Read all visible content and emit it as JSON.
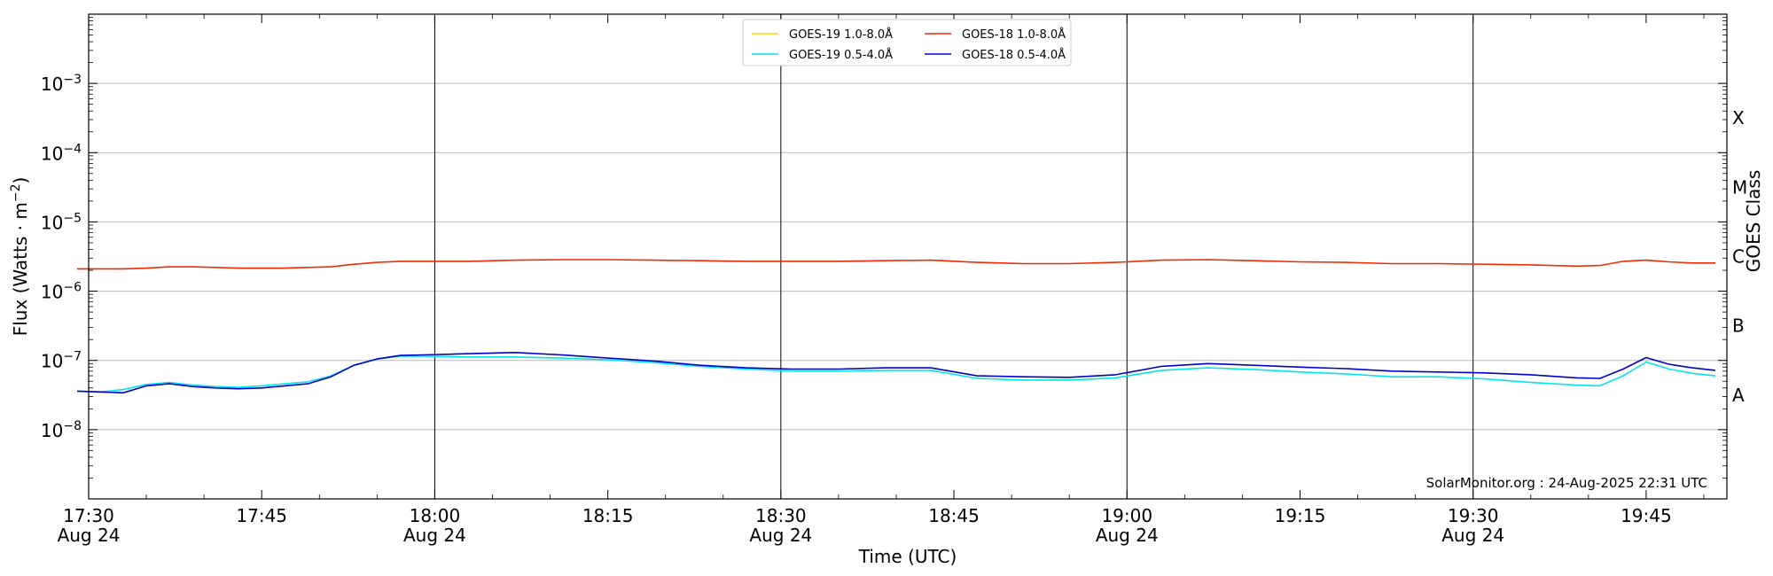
{
  "chart_data": {
    "type": "line",
    "title": "",
    "xlabel": "Time (UTC)",
    "ylabel": "Flux (Watts · m⁻²)",
    "ylabel_parts": {
      "main": "Flux (Watts · m",
      "sup": "−2",
      "close": ")"
    },
    "right_axis_label": "GOES Class",
    "y_scale": "log",
    "ylim": [
      1e-09,
      0.01
    ],
    "xlim": [
      "2025-08-24 17:30",
      "2025-08-24 19:52"
    ],
    "grid": {
      "horizontal": true,
      "vertical_lines_at_half_hour": true
    },
    "y_ticks": [
      {
        "value": 1e-08,
        "base": "10",
        "exp": "−8"
      },
      {
        "value": 1e-07,
        "base": "10",
        "exp": "−7"
      },
      {
        "value": 1e-06,
        "base": "10",
        "exp": "−6"
      },
      {
        "value": 1e-05,
        "base": "10",
        "exp": "−5"
      },
      {
        "value": 0.0001,
        "base": "10",
        "exp": "−4"
      },
      {
        "value": 0.001,
        "base": "10",
        "exp": "−3"
      }
    ],
    "x_ticks": [
      {
        "time": "17:30",
        "line1": "17:30",
        "line2": "Aug 24"
      },
      {
        "time": "17:45",
        "line1": "17:45",
        "line2": ""
      },
      {
        "time": "18:00",
        "line1": "18:00",
        "line2": "Aug 24"
      },
      {
        "time": "18:15",
        "line1": "18:15",
        "line2": ""
      },
      {
        "time": "18:30",
        "line1": "18:30",
        "line2": "Aug 24"
      },
      {
        "time": "18:45",
        "line1": "18:45",
        "line2": ""
      },
      {
        "time": "19:00",
        "line1": "19:00",
        "line2": "Aug 24"
      },
      {
        "time": "19:15",
        "line1": "19:15",
        "line2": ""
      },
      {
        "time": "19:30",
        "line1": "19:30",
        "line2": "Aug 24"
      },
      {
        "time": "19:45",
        "line1": "19:45",
        "line2": ""
      }
    ],
    "goes_classes": [
      {
        "label": "A",
        "lower": 1e-08
      },
      {
        "label": "B",
        "lower": 1e-07
      },
      {
        "label": "C",
        "lower": 1e-06
      },
      {
        "label": "M",
        "lower": 1e-05
      },
      {
        "label": "X",
        "lower": 0.0001
      }
    ],
    "legend": {
      "position": "top-center",
      "entries": [
        {
          "label": "GOES-19 1.0-8.0Å",
          "color": "#ffd700"
        },
        {
          "label": "GOES-19 0.5-4.0Å",
          "color": "#00e5ee"
        },
        {
          "label": "GOES-18 1.0-8.0Å",
          "color": "#ee2c00"
        },
        {
          "label": "GOES-18 0.5-4.0Å",
          "color": "#0000cd"
        }
      ]
    },
    "x": [
      "17:29",
      "17:31",
      "17:33",
      "17:35",
      "17:37",
      "17:39",
      "17:41",
      "17:43",
      "17:45",
      "17:47",
      "17:49",
      "17:51",
      "17:53",
      "17:55",
      "17:57",
      "17:59",
      "18:03",
      "18:07",
      "18:11",
      "18:15",
      "18:19",
      "18:23",
      "18:27",
      "18:31",
      "18:35",
      "18:39",
      "18:43",
      "18:47",
      "18:51",
      "18:55",
      "18:59",
      "19:03",
      "19:07",
      "19:11",
      "19:15",
      "19:19",
      "19:23",
      "19:27",
      "19:31",
      "19:35",
      "19:39",
      "19:41",
      "19:43",
      "19:45",
      "19:47",
      "19:49",
      "19:51"
    ],
    "series": [
      {
        "name": "GOES-18 1.0-8.0Å",
        "color": "#ee2c00",
        "values": [
          2.1e-06,
          2.1e-06,
          2.1e-06,
          2.15e-06,
          2.25e-06,
          2.25e-06,
          2.2e-06,
          2.15e-06,
          2.15e-06,
          2.15e-06,
          2.2e-06,
          2.25e-06,
          2.45e-06,
          2.6e-06,
          2.7e-06,
          2.7e-06,
          2.7e-06,
          2.8e-06,
          2.85e-06,
          2.85e-06,
          2.8e-06,
          2.75e-06,
          2.7e-06,
          2.7e-06,
          2.7e-06,
          2.75e-06,
          2.8e-06,
          2.6e-06,
          2.5e-06,
          2.5e-06,
          2.6e-06,
          2.8e-06,
          2.85e-06,
          2.75e-06,
          2.65e-06,
          2.6e-06,
          2.5e-06,
          2.5e-06,
          2.45e-06,
          2.4e-06,
          2.3e-06,
          2.35e-06,
          2.7e-06,
          2.8e-06,
          2.65e-06,
          2.55e-06,
          2.55e-06
        ]
      },
      {
        "name": "GOES-19 0.5-4.0Å",
        "color": "#00e5ee",
        "values": [
          3.6e-08,
          3.5e-08,
          3.8e-08,
          4.5e-08,
          4.8e-08,
          4.4e-08,
          4.2e-08,
          4.1e-08,
          4.3e-08,
          4.6e-08,
          4.9e-08,
          6e-08,
          8.5e-08,
          1.05e-07,
          1.15e-07,
          1.15e-07,
          1.12e-07,
          1.12e-07,
          1.08e-07,
          1.02e-07,
          9.3e-08,
          8.2e-08,
          7.5e-08,
          7e-08,
          7e-08,
          7.2e-08,
          7.2e-08,
          5.5e-08,
          5.2e-08,
          5.2e-08,
          5.6e-08,
          7.2e-08,
          7.8e-08,
          7.4e-08,
          6.8e-08,
          6.4e-08,
          5.8e-08,
          5.8e-08,
          5.4e-08,
          4.8e-08,
          4.4e-08,
          4.3e-08,
          6e-08,
          9.5e-08,
          7.5e-08,
          6.5e-08,
          6e-08
        ]
      },
      {
        "name": "GOES-18 0.5-4.0Å",
        "color": "#0000cd",
        "values": [
          3.6e-08,
          3.5e-08,
          3.4e-08,
          4.3e-08,
          4.6e-08,
          4.2e-08,
          4e-08,
          3.9e-08,
          4e-08,
          4.3e-08,
          4.6e-08,
          5.8e-08,
          8.5e-08,
          1.05e-07,
          1.18e-07,
          1.2e-07,
          1.25e-07,
          1.3e-07,
          1.2e-07,
          1.08e-07,
          9.8e-08,
          8.5e-08,
          7.8e-08,
          7.5e-08,
          7.5e-08,
          7.8e-08,
          7.8e-08,
          6e-08,
          5.8e-08,
          5.7e-08,
          6.2e-08,
          8.2e-08,
          9e-08,
          8.5e-08,
          8e-08,
          7.6e-08,
          7e-08,
          6.8e-08,
          6.6e-08,
          6.2e-08,
          5.6e-08,
          5.5e-08,
          7.5e-08,
          1.1e-07,
          8.8e-08,
          7.8e-08,
          7.2e-08
        ]
      }
    ],
    "credit": "SolarMonitor.org : 24-Aug-2025 22:31 UTC"
  }
}
